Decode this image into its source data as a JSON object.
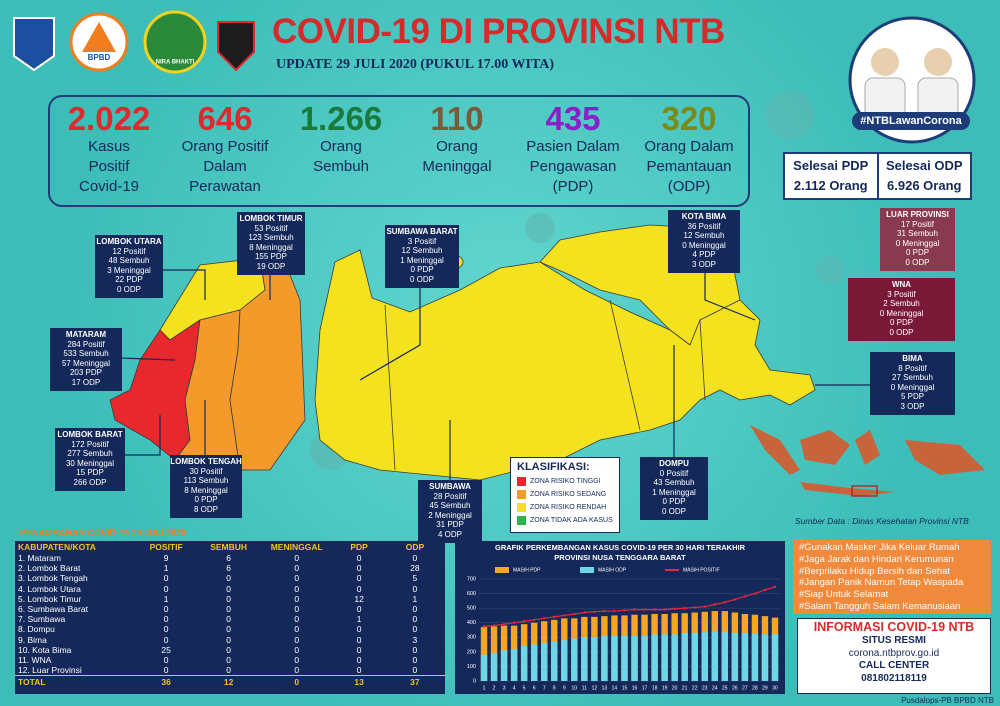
{
  "header": {
    "title": "COVID-19 DI PROVINSI NTB",
    "update": "UPDATE 29 JULI 2020 (PUKUL 17.00 WITA)",
    "hashtag": "#NTBLawanCorona",
    "logos": [
      "BPBD",
      "NIRA BHAKTI"
    ]
  },
  "stats": [
    {
      "value": "2.022",
      "color": "#e0282d",
      "label": [
        "Kasus",
        "Positif",
        "Covid-19"
      ]
    },
    {
      "value": "646",
      "color": "#e0282d",
      "label": [
        "Orang Positif",
        "Dalam",
        "Perawatan"
      ]
    },
    {
      "value": "1.266",
      "color": "#1a7a3c",
      "label": [
        "Orang",
        "Sembuh"
      ]
    },
    {
      "value": "110",
      "color": "#7a5a3a",
      "label": [
        "Orang",
        "Meninggal"
      ]
    },
    {
      "value": "435",
      "color": "#8a1ec8",
      "label": [
        "Pasien Dalam",
        "Pengawasan",
        "(PDP)"
      ]
    },
    {
      "value": "320",
      "color": "#7a8a1a",
      "label": [
        "Orang Dalam",
        "Pemantauan",
        "(ODP)"
      ]
    }
  ],
  "selesai": [
    {
      "label": "Selesai PDP",
      "value": "2.112 Orang"
    },
    {
      "label": "Selesai ODP",
      "value": "6.926 Orang"
    }
  ],
  "regions": [
    {
      "name": "LOMBOK UTARA",
      "color": "#14285a",
      "lines": [
        "12 Positif",
        "48 Sembuh",
        "3 Meninggal",
        "22 PDP",
        "0 ODP"
      ]
    },
    {
      "name": "LOMBOK TIMUR",
      "color": "#14285a",
      "lines": [
        "53 Positif",
        "123 Sembuh",
        "8 Meninggal",
        "155 PDP",
        "19 ODP"
      ]
    },
    {
      "name": "SUMBAWA BARAT",
      "color": "#14285a",
      "lines": [
        "3 Positif",
        "12 Sembuh",
        "1 Meninggal",
        "0 PDP",
        "0 ODP"
      ]
    },
    {
      "name": "KOTA BIMA",
      "color": "#14285a",
      "lines": [
        "36 Positif",
        "12 Sembuh",
        "0 Meninggal",
        "4 PDP",
        "3 ODP"
      ]
    },
    {
      "name": "LUAR PROVINSI",
      "color": "#8a3a50",
      "lines": [
        "17 Positif",
        "31 Sembuh",
        "0 Meninggal",
        "0 PDP",
        "0 ODP"
      ]
    },
    {
      "name": "WNA",
      "color": "#7a1838",
      "lines": [
        "3 Positif",
        "2 Sembuh",
        "0 Meninggal",
        "0 PDP",
        "0 ODP"
      ]
    },
    {
      "name": "BIMA",
      "color": "#14285a",
      "lines": [
        "8 Positif",
        "27 Sembuh",
        "0 Meninggal",
        "5 PDP",
        "3 ODP"
      ]
    },
    {
      "name": "MATARAM",
      "color": "#14285a",
      "lines": [
        "284 Positif",
        "533 Sembuh",
        "57 Meninggal",
        "203 PDP",
        "17 ODP"
      ]
    },
    {
      "name": "LOMBOK BARAT",
      "color": "#14285a",
      "lines": [
        "172 Positif",
        "277 Sembuh",
        "30 Meninggal",
        "15 PDP",
        "266 ODP"
      ]
    },
    {
      "name": "LOMBOK TENGAH",
      "color": "#14285a",
      "lines": [
        "30 Positif",
        "113 Sembuh",
        "8 Meninggal",
        "0 PDP",
        "8 ODP"
      ]
    },
    {
      "name": "SUMBAWA",
      "color": "#14285a",
      "lines": [
        "28 Positif",
        "45 Sembuh",
        "2 Meninggal",
        "31 PDP",
        "4 ODP"
      ]
    },
    {
      "name": "DOMPU",
      "color": "#14285a",
      "lines": [
        "0 Positif",
        "43 Sembuh",
        "1 Meninggal",
        "0 PDP",
        "0 ODP"
      ]
    }
  ],
  "legend": {
    "title": "KLASIFIKASI:",
    "items": [
      {
        "color": "#e8282d",
        "label": "ZONA RISIKO TINGGI"
      },
      {
        "color": "#f39a2a",
        "label": "ZONA RISIKO SEDANG"
      },
      {
        "color": "#f5e21e",
        "label": "ZONA RISIKO RENDAH"
      },
      {
        "color": "#2cb34a",
        "label": "ZONA TIDAK ADA KASUS"
      }
    ]
  },
  "source": "Sumber Data : Dinas Kesehatan Provinsi NTB",
  "table": {
    "title": "PENAMBAHAN COVID-19 29 JULI 2020",
    "headers": [
      "KABUPATEN/KOTA",
      "POSITIF",
      "SEMBUH",
      "MENINGGAL",
      "PDP",
      "ODP"
    ],
    "rows": [
      [
        "1. Mataram",
        9,
        6,
        0,
        0,
        0
      ],
      [
        "2. Lombok Barat",
        1,
        6,
        0,
        0,
        28
      ],
      [
        "3. Lombok Tengah",
        0,
        0,
        0,
        0,
        5
      ],
      [
        "4. Lombok Utara",
        0,
        0,
        0,
        0,
        0
      ],
      [
        "5. Lombok Timur",
        1,
        0,
        0,
        12,
        1
      ],
      [
        "6. Sumbawa Barat",
        0,
        0,
        0,
        0,
        0
      ],
      [
        "7. Sumbawa",
        0,
        0,
        0,
        1,
        0
      ],
      [
        "8. Dompu",
        0,
        0,
        0,
        0,
        0
      ],
      [
        "9. Bima",
        0,
        0,
        0,
        0,
        3
      ],
      [
        "10. Kota Bima",
        25,
        0,
        0,
        0,
        0
      ],
      [
        "11. WNA",
        0,
        0,
        0,
        0,
        0
      ],
      [
        "12. Luar Provinsi",
        0,
        0,
        0,
        0,
        0
      ]
    ],
    "total": [
      "TOTAL",
      36,
      12,
      0,
      13,
      37
    ]
  },
  "chart_data": {
    "type": "bar",
    "title": [
      "GRAFIK PERKEMBANGAN KASUS COVID-19 PER 30 HARI TERAKHIR",
      "PROVINSI NUSA TENGGARA BARAT"
    ],
    "categories": [
      1,
      2,
      3,
      4,
      5,
      6,
      7,
      8,
      9,
      10,
      11,
      12,
      13,
      14,
      15,
      16,
      17,
      18,
      19,
      20,
      21,
      22,
      23,
      24,
      25,
      26,
      27,
      28,
      29,
      30
    ],
    "ylim": [
      0,
      700
    ],
    "yticks": [
      0,
      100,
      200,
      300,
      400,
      500,
      600,
      700
    ],
    "series": [
      {
        "name": "MASIH PDP",
        "type": "bar",
        "color": "#f5a623",
        "values": [
          370,
          375,
          380,
          380,
          390,
          400,
          410,
          420,
          430,
          430,
          440,
          440,
          445,
          450,
          450,
          455,
          455,
          460,
          460,
          465,
          465,
          470,
          475,
          480,
          480,
          470,
          460,
          455,
          445,
          435
        ]
      },
      {
        "name": "MASIH ODP",
        "type": "bar",
        "color": "#6fd6e8",
        "values": [
          180,
          190,
          210,
          220,
          240,
          250,
          260,
          270,
          280,
          290,
          300,
          300,
          310,
          310,
          310,
          310,
          310,
          320,
          320,
          320,
          330,
          330,
          335,
          340,
          335,
          330,
          330,
          325,
          320,
          320
        ]
      },
      {
        "name": "MASIH POSITIF",
        "type": "line",
        "color": "#e8283c",
        "values": [
          375,
          380,
          390,
          400,
          410,
          420,
          430,
          440,
          450,
          460,
          470,
          475,
          480,
          480,
          485,
          490,
          490,
          490,
          490,
          495,
          500,
          505,
          510,
          525,
          540,
          560,
          580,
          600,
          625,
          646
        ]
      }
    ]
  },
  "tips": [
    "#Gunakan Masker Jika Keluar Rumah",
    "#Jaga Jarak dan Hindari Kerumunan",
    "#Berprilaku Hidup Bersih dan Sehat",
    "#Jangan Panik Namun Tetap Waspada",
    "#Siap Untuk Selamat",
    "#Salam Tangguh Salam Kemanusiaan"
  ],
  "info": {
    "title": "INFORMASI COVID-19 NTB",
    "site_label": "SITUS RESMI",
    "site": "corona.ntbprov.go.id",
    "call_label": "CALL CENTER",
    "call": "081802118119"
  },
  "footer": "Pusdalops-PB BPBD NTB"
}
